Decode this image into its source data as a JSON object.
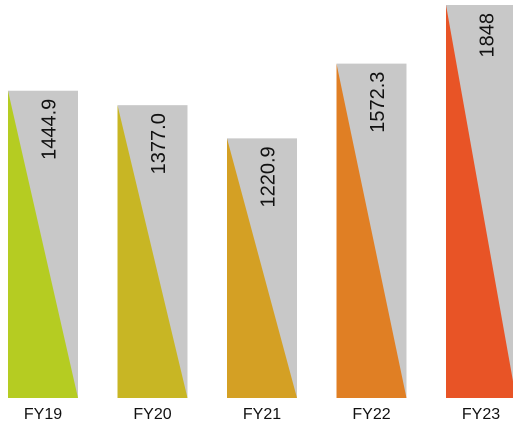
{
  "chart_data": {
    "type": "bar",
    "categories": [
      "FY19",
      "FY20",
      "FY21",
      "FY22",
      "FY23"
    ],
    "values": [
      1444.9,
      1377.0,
      1220.9,
      1572.3,
      1848
    ],
    "value_labels": [
      "1444.9",
      "1377.0",
      "1220.9",
      "1572.3",
      "1848"
    ],
    "colors": [
      "#b5cc22",
      "#c8b624",
      "#d4a024",
      "#e07f24",
      "#e85426"
    ],
    "background_color": "#c8c8c8"
  }
}
